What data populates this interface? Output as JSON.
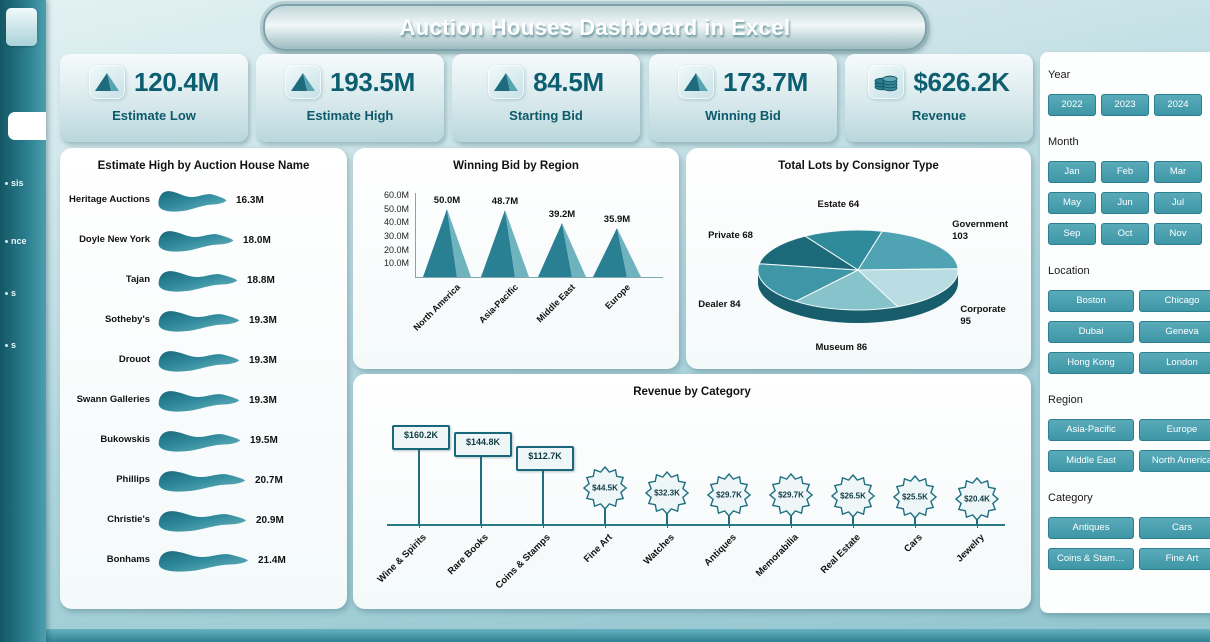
{
  "title": "Auction Houses Dashboard in Excel",
  "sidebar": {
    "items": [
      {
        "label": "sis"
      },
      {
        "label": "nce"
      },
      {
        "label": "s"
      },
      {
        "label": "s"
      }
    ]
  },
  "kpis": [
    {
      "value": "120.4M",
      "label": "Estimate Low",
      "icon": "pyramid-icon"
    },
    {
      "value": "193.5M",
      "label": "Estimate High",
      "icon": "pyramid-icon"
    },
    {
      "value": "84.5M",
      "label": "Starting Bid",
      "icon": "pyramid-icon"
    },
    {
      "value": "173.7M",
      "label": "Winning Bid",
      "icon": "pyramid-icon"
    },
    {
      "value": "$626.2K",
      "label": "Revenue",
      "icon": "coins-icon"
    }
  ],
  "chart_data": [
    {
      "type": "bar",
      "subtype": "wave-horizontal",
      "title": "Estimate High by Auction House Name",
      "categories": [
        "Heritage Auctions",
        "Doyle New York",
        "Tajan",
        "Sotheby's",
        "Drouot",
        "Swann Galleries",
        "Bukowskis",
        "Phillips",
        "Christie's",
        "Bonhams"
      ],
      "values": [
        16.3,
        18.0,
        18.8,
        19.3,
        19.3,
        19.3,
        19.5,
        20.7,
        20.9,
        21.4
      ],
      "value_labels": [
        "16.3M",
        "18.0M",
        "18.8M",
        "19.3M",
        "19.3M",
        "19.3M",
        "19.5M",
        "20.7M",
        "20.9M",
        "21.4M"
      ],
      "unit": "M"
    },
    {
      "type": "bar",
      "subtype": "pyramid",
      "title": "Winning Bid by Region",
      "categories": [
        "North America",
        "Asia-Pacific",
        "Middle East",
        "Europe"
      ],
      "values": [
        50.0,
        48.7,
        39.2,
        35.9
      ],
      "value_labels": [
        "50.0M",
        "48.7M",
        "39.2M",
        "35.9M"
      ],
      "y_ticks": [
        "60.0M",
        "50.0M",
        "40.0M",
        "30.0M",
        "20.0M",
        "10.0M"
      ],
      "ylim": [
        0,
        60
      ],
      "grid": false
    },
    {
      "type": "pie",
      "subtype": "3d",
      "title": "Total Lots by Consignor Type",
      "categories": [
        "Estate",
        "Government",
        "Corporate",
        "Museum",
        "Dealer",
        "Private"
      ],
      "values": [
        64,
        103,
        95,
        86,
        84,
        68
      ],
      "labels": [
        "Estate 64",
        "Government 103",
        "Corporate 95",
        "Museum 86",
        "Dealer 84",
        "Private 68"
      ],
      "colors": [
        "#2f8a9a",
        "#4fa3b2",
        "#b9dde2",
        "#86c3cb",
        "#3f96a6",
        "#1c6a79"
      ]
    },
    {
      "type": "lollipop",
      "title": "Revenue by Category",
      "categories": [
        "Wine & Spirits",
        "Rare Books",
        "Coins & Stamps",
        "Fine Art",
        "Watches",
        "Antiques",
        "Memorabilia",
        "Real Estate",
        "Cars",
        "Jewelry"
      ],
      "values": [
        160.2,
        144.8,
        112.7,
        44.5,
        32.3,
        29.7,
        29.7,
        26.5,
        25.5,
        20.4
      ],
      "value_labels": [
        "$160.2K",
        "$144.8K",
        "$112.7K",
        "$44.5K",
        "$32.3K",
        "$29.7K",
        "$29.7K",
        "$26.5K",
        "$25.5K",
        "$20.4K"
      ]
    }
  ],
  "slicers": [
    {
      "label": "Year",
      "size": "small",
      "options": [
        "2022",
        "2023",
        "2024"
      ]
    },
    {
      "label": "Month",
      "size": "small",
      "options": [
        "Jan",
        "Feb",
        "Mar",
        "May",
        "Jun",
        "Jul",
        "Sep",
        "Oct",
        "Nov"
      ]
    },
    {
      "label": "Location",
      "size": "large",
      "options": [
        "Boston",
        "Chicago",
        "Dubai",
        "Geneva",
        "Hong Kong",
        "London"
      ]
    },
    {
      "label": "Region",
      "size": "large",
      "options": [
        "Asia-Pacific",
        "Europe",
        "Middle East",
        "North America"
      ]
    },
    {
      "label": "Category",
      "size": "large",
      "options": [
        "Antiques",
        "Cars",
        "Coins & Stamps",
        "Fine Art"
      ]
    }
  ],
  "colors": {
    "accent_dark": "#135764",
    "accent": "#3e96a6",
    "kpi_text": "#0d5e70",
    "pie_rim": "#175d6c"
  }
}
